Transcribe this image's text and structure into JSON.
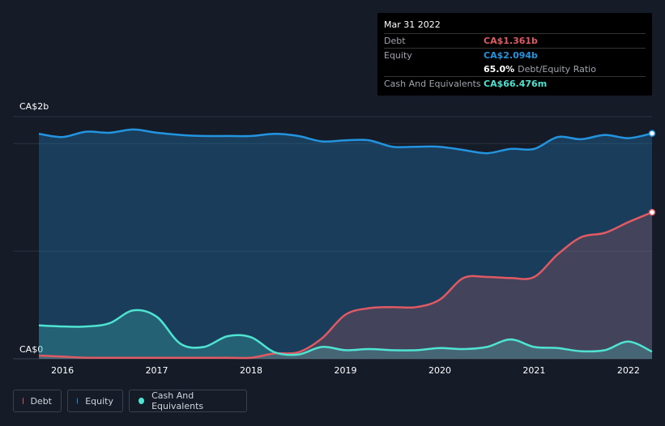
{
  "tooltip": {
    "date": "Mar 31 2022",
    "rows": [
      {
        "label": "Debt",
        "value": "CA$1.361b",
        "sub": ""
      },
      {
        "label": "Equity",
        "value": "CA$2.094b",
        "sub": ""
      },
      {
        "label": "",
        "value": "65.0%",
        "sub": "Debt/Equity Ratio"
      },
      {
        "label": "Cash And Equivalents",
        "value": "CA$66.476m",
        "sub": ""
      }
    ]
  },
  "legend": [
    {
      "label": "Debt",
      "color": "#e05a63"
    },
    {
      "label": "Equity",
      "color": "#2394df"
    },
    {
      "label": "Cash And Equivalents",
      "color": "#4fe3d2"
    }
  ],
  "chart_data": {
    "type": "area",
    "y_top_label": "CA$2b",
    "y_bottom_label": "CA$0",
    "ylim": [
      0,
      2.25
    ],
    "xlim": [
      2015.75,
      2022.25
    ],
    "x_ticks": [
      2016,
      2017,
      2018,
      2019,
      2020,
      2021,
      2022
    ],
    "x_tick_labels": [
      "2016",
      "2017",
      "2018",
      "2019",
      "2020",
      "2021",
      "2022"
    ],
    "colors": {
      "debt": "#e05a63",
      "equity": "#2394df",
      "cash": "#4fe3d2"
    },
    "series": [
      {
        "name": "Equity",
        "points": [
          [
            2015.75,
            2.09
          ],
          [
            2016.0,
            2.06
          ],
          [
            2016.25,
            2.11
          ],
          [
            2016.5,
            2.1
          ],
          [
            2016.75,
            2.13
          ],
          [
            2017.0,
            2.1
          ],
          [
            2017.25,
            2.08
          ],
          [
            2017.5,
            2.07
          ],
          [
            2017.75,
            2.07
          ],
          [
            2018.0,
            2.07
          ],
          [
            2018.25,
            2.09
          ],
          [
            2018.5,
            2.07
          ],
          [
            2018.75,
            2.02
          ],
          [
            2019.0,
            2.03
          ],
          [
            2019.25,
            2.03
          ],
          [
            2019.5,
            1.97
          ],
          [
            2019.75,
            1.97
          ],
          [
            2020.0,
            1.97
          ],
          [
            2020.25,
            1.94
          ],
          [
            2020.5,
            1.91
          ],
          [
            2020.75,
            1.95
          ],
          [
            2021.0,
            1.95
          ],
          [
            2021.25,
            2.06
          ],
          [
            2021.5,
            2.04
          ],
          [
            2021.75,
            2.08
          ],
          [
            2022.0,
            2.05
          ],
          [
            2022.25,
            2.094
          ]
        ]
      },
      {
        "name": "Debt",
        "points": [
          [
            2015.75,
            0.03
          ],
          [
            2016.0,
            0.02
          ],
          [
            2016.25,
            0.01
          ],
          [
            2016.5,
            0.01
          ],
          [
            2016.75,
            0.01
          ],
          [
            2017.0,
            0.01
          ],
          [
            2017.25,
            0.01
          ],
          [
            2017.5,
            0.01
          ],
          [
            2017.75,
            0.01
          ],
          [
            2018.0,
            0.01
          ],
          [
            2018.25,
            0.05
          ],
          [
            2018.5,
            0.06
          ],
          [
            2018.75,
            0.19
          ],
          [
            2019.0,
            0.41
          ],
          [
            2019.25,
            0.47
          ],
          [
            2019.5,
            0.48
          ],
          [
            2019.75,
            0.48
          ],
          [
            2020.0,
            0.55
          ],
          [
            2020.25,
            0.75
          ],
          [
            2020.5,
            0.76
          ],
          [
            2020.75,
            0.75
          ],
          [
            2021.0,
            0.76
          ],
          [
            2021.25,
            0.97
          ],
          [
            2021.5,
            1.13
          ],
          [
            2021.75,
            1.17
          ],
          [
            2022.0,
            1.27
          ],
          [
            2022.25,
            1.361
          ]
        ]
      },
      {
        "name": "Cash And Equivalents",
        "points": [
          [
            2015.75,
            0.31
          ],
          [
            2016.0,
            0.3
          ],
          [
            2016.25,
            0.3
          ],
          [
            2016.5,
            0.33
          ],
          [
            2016.75,
            0.45
          ],
          [
            2017.0,
            0.39
          ],
          [
            2017.25,
            0.14
          ],
          [
            2017.5,
            0.11
          ],
          [
            2017.75,
            0.21
          ],
          [
            2018.0,
            0.2
          ],
          [
            2018.25,
            0.06
          ],
          [
            2018.5,
            0.04
          ],
          [
            2018.75,
            0.11
          ],
          [
            2019.0,
            0.08
          ],
          [
            2019.25,
            0.09
          ],
          [
            2019.5,
            0.08
          ],
          [
            2019.75,
            0.08
          ],
          [
            2020.0,
            0.1
          ],
          [
            2020.25,
            0.09
          ],
          [
            2020.5,
            0.11
          ],
          [
            2020.75,
            0.18
          ],
          [
            2021.0,
            0.11
          ],
          [
            2021.25,
            0.1
          ],
          [
            2021.5,
            0.07
          ],
          [
            2021.75,
            0.08
          ],
          [
            2022.0,
            0.16
          ],
          [
            2022.25,
            0.066
          ]
        ]
      }
    ]
  }
}
